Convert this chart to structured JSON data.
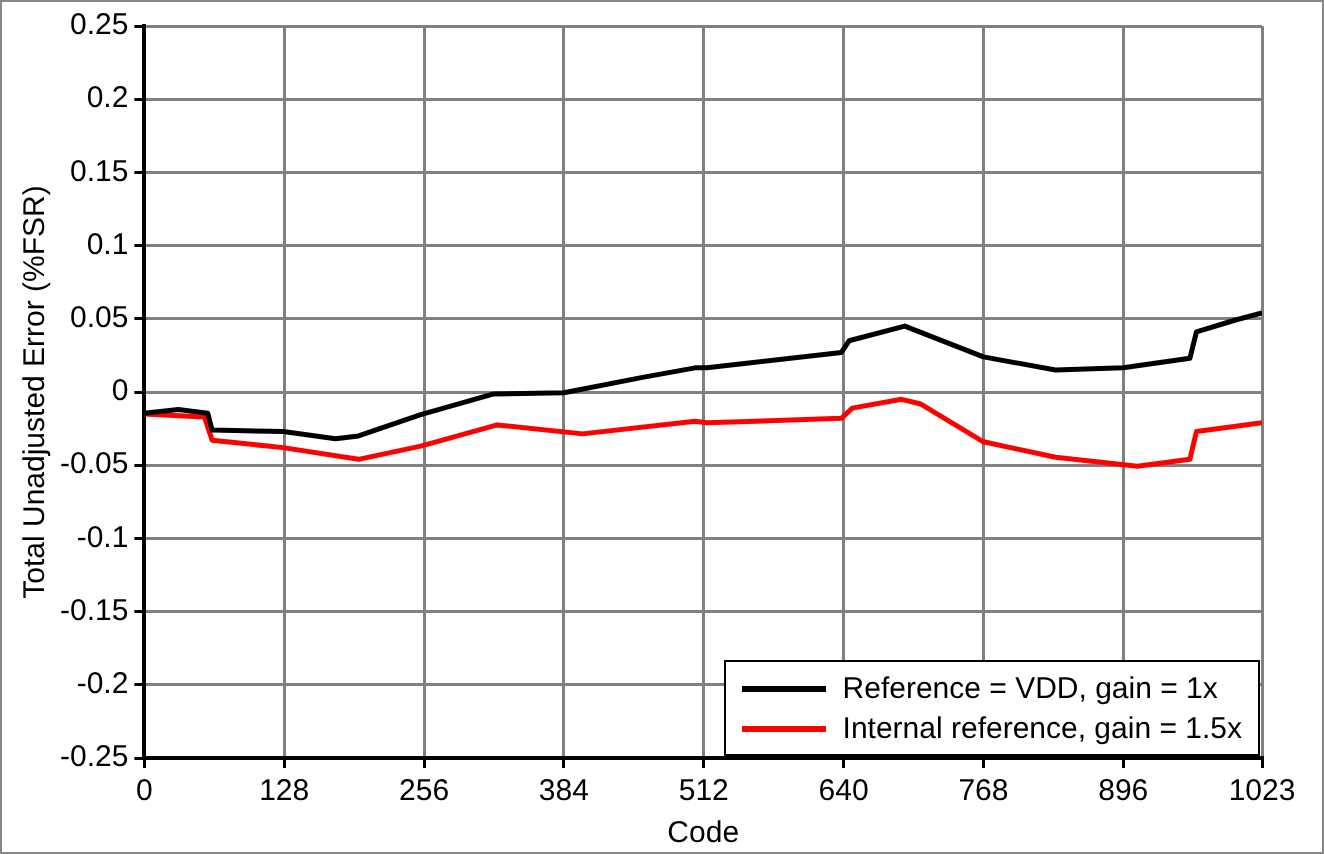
{
  "chart_data": {
    "type": "line",
    "xlabel": "Code",
    "ylabel": "Total Unadjusted Error (%FSR)",
    "xlim": [
      0,
      1023
    ],
    "xticks": [
      0,
      128,
      256,
      384,
      512,
      640,
      768,
      896,
      1023
    ],
    "ylim": [
      -0.25,
      0.25
    ],
    "yticks": [
      -0.25,
      -0.2,
      -0.15,
      -0.1,
      -0.05,
      0,
      0.05,
      0.1,
      0.15,
      0.2,
      0.25
    ],
    "grid": true,
    "legend": "bottom right",
    "marker": "none",
    "line_style": "solid",
    "series": [
      {
        "name": "Reference = VDD, gain = 1x",
        "color": "#000000",
        "x": [
          0,
          31,
          58,
          62,
          127,
          175,
          196,
          253,
          319,
          384,
          456,
          504,
          515,
          638,
          645,
          696,
          768,
          834,
          896,
          957,
          963,
          998,
          1023
        ],
        "values": [
          -0.0145,
          -0.012,
          -0.0145,
          -0.026,
          -0.027,
          -0.032,
          -0.03,
          -0.0155,
          -0.0014,
          -0.0005,
          0.01,
          0.0165,
          0.0165,
          0.027,
          0.035,
          0.045,
          0.024,
          0.015,
          0.0165,
          0.023,
          0.041,
          0.049,
          0.054
        ]
      },
      {
        "name": "Internal reference, gain = 1.5x",
        "color": "#ff0000",
        "x": [
          0,
          55,
          62,
          127,
          196,
          253,
          323,
          401,
          504,
          515,
          638,
          648,
          693,
          710,
          768,
          834,
          909,
          957,
          963,
          1023
        ],
        "values": [
          -0.015,
          -0.017,
          -0.033,
          -0.038,
          -0.046,
          -0.037,
          -0.0225,
          -0.0286,
          -0.02,
          -0.021,
          -0.018,
          -0.011,
          -0.005,
          -0.008,
          -0.034,
          -0.0446,
          -0.0507,
          -0.046,
          -0.027,
          -0.021
        ]
      }
    ]
  }
}
